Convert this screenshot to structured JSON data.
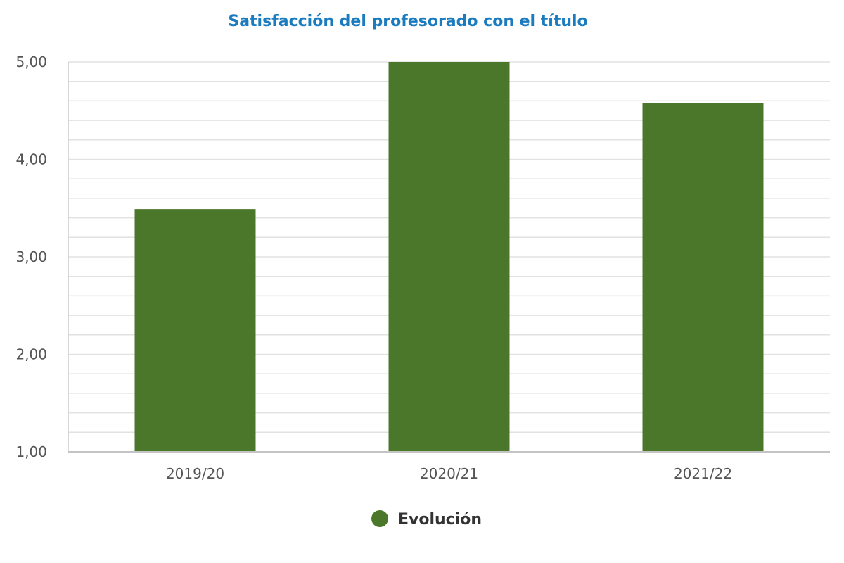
{
  "chart_data": {
    "type": "bar",
    "title": "Satisfacción del profesorado con el título",
    "categories": [
      "2019/20",
      "2020/21",
      "2021/22"
    ],
    "series": [
      {
        "name": "Evolución",
        "values": [
          3.49,
          5.0,
          4.58
        ],
        "color": "#4b772b"
      }
    ],
    "ylim": [
      1,
      5
    ],
    "y_ticks": [
      {
        "value": 1,
        "label": "1,00"
      },
      {
        "value": 2,
        "label": "2,00"
      },
      {
        "value": 3,
        "label": "3,00"
      },
      {
        "value": 4,
        "label": "4,00"
      },
      {
        "value": 5,
        "label": "5,00"
      }
    ],
    "minor_grid_step": 0.2,
    "grid": true,
    "legend_position": "bottom-center",
    "xlabel": "",
    "ylabel": ""
  }
}
